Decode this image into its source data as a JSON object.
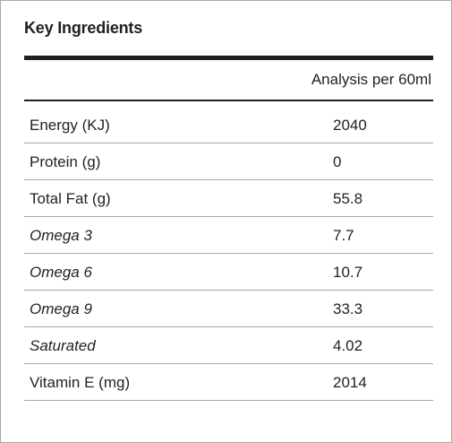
{
  "title": "Key Ingredients",
  "column_header": "Analysis per 60ml",
  "rows": [
    {
      "label": "Energy (KJ)",
      "value": "2040",
      "italic": false
    },
    {
      "label": "Protein (g)",
      "value": "0",
      "italic": false
    },
    {
      "label": "Total Fat (g)",
      "value": "55.8",
      "italic": false
    },
    {
      "label": "Omega 3",
      "value": "7.7",
      "italic": true
    },
    {
      "label": "Omega 6",
      "value": "10.7",
      "italic": true
    },
    {
      "label": "Omega 9",
      "value": "33.3",
      "italic": true
    },
    {
      "label": "Saturated",
      "value": "4.02",
      "italic": true
    },
    {
      "label": "Vitamin E (mg)",
      "value": "2014",
      "italic": false
    }
  ],
  "colors": {
    "text": "#231f20",
    "rule": "#231f20",
    "row_divider": "#a7a9ac",
    "border": "#a7a9ac"
  }
}
